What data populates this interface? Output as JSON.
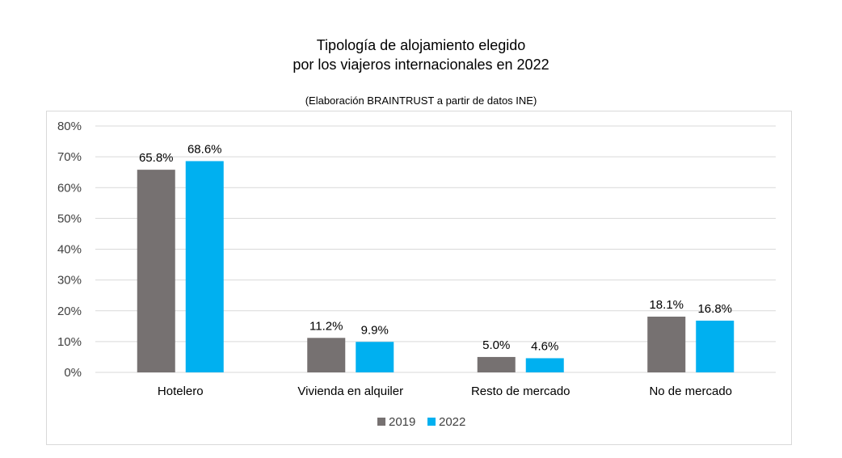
{
  "chart_data": {
    "type": "bar",
    "title_line1": "Tipología de alojamiento elegido",
    "title_line2": "por los viajeros internacionales en 2022",
    "subtitle": "(Elaboración BRAINTRUST a partir de datos INE)",
    "categories": [
      "Hotelero",
      "Vivienda en alquiler",
      "Resto de mercado",
      "No de mercado"
    ],
    "series": [
      {
        "name": "2019",
        "values": [
          65.8,
          11.2,
          5.0,
          18.1
        ],
        "labels": [
          "65.8%",
          "11.2%",
          "5.0%",
          "18.1%"
        ],
        "color": "#767171"
      },
      {
        "name": "2022",
        "values": [
          68.6,
          9.9,
          4.6,
          16.8
        ],
        "labels": [
          "68.6%",
          "9.9%",
          "4.6%",
          "16.8%"
        ],
        "color": "#00b0f0"
      }
    ],
    "yticks": [
      "0%",
      "10%",
      "20%",
      "30%",
      "40%",
      "50%",
      "60%",
      "70%",
      "80%"
    ],
    "ylim": [
      0,
      80
    ],
    "grid": true,
    "legend": "bottom-center",
    "gridColor": "#d9d9d9"
  }
}
